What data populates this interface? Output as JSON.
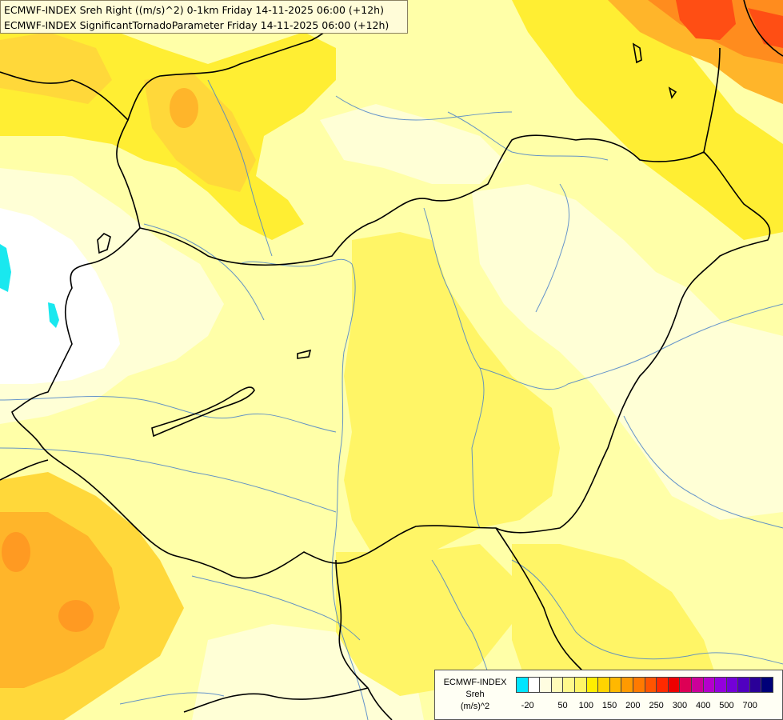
{
  "title": {
    "line1": "ECMWF-INDEX Sreh Right ((m/s)^2) 0-1km Friday 14-11-2025 06:00 (+12h)",
    "line2": "ECMWF-INDEX SignificantTornadoParameter Friday 14-11-2025 06:00 (+12h)"
  },
  "legend": {
    "source": "ECMWF-INDEX",
    "variable": "Sreh",
    "unit": "(m/s)^2",
    "colors": [
      "#00e5ff",
      "#ffffff",
      "#fffde0",
      "#fffbb8",
      "#fff98c",
      "#fff566",
      "#ffee00",
      "#ffd400",
      "#ffb800",
      "#ff9a00",
      "#ff7a00",
      "#ff5500",
      "#ff2a00",
      "#ee0000",
      "#dd0055",
      "#cc0099",
      "#b400cc",
      "#9400dd",
      "#7400d8",
      "#5000c0",
      "#2a0098",
      "#000078"
    ],
    "tick_labels": [
      "-20",
      "50",
      "100",
      "150",
      "200",
      "250",
      "300",
      "400",
      "500",
      "700"
    ]
  },
  "field_colors": {
    "white": "#ffffff",
    "pale": "#ffffd6",
    "light": "#ffffa8",
    "yellow": "#fffa6e",
    "bright": "#ffee33",
    "gold": "#ffd83a",
    "orange": "#ffb52a",
    "deep_orange": "#ff8c1e",
    "red": "#ff4e14",
    "cyan": "#19e8ef",
    "border": "#000000",
    "river": "#4b82c8"
  }
}
